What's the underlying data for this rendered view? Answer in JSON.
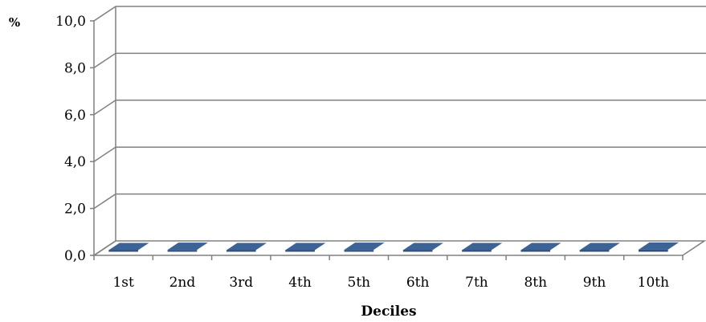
{
  "chart_data": {
    "type": "bar",
    "title": "",
    "xlabel": "Deciles",
    "ylabel": "%",
    "categories": [
      "1st",
      "2nd",
      "3rd",
      "4th",
      "5th",
      "6th",
      "7th",
      "8th",
      "9th",
      "10th"
    ],
    "values": [
      0.05,
      0.08,
      0.06,
      0.05,
      0.08,
      0.07,
      0.07,
      0.07,
      0.07,
      0.09
    ],
    "ylim": [
      0,
      10
    ],
    "yticks": [
      "0,0",
      "2,0",
      "4,0",
      "6,0",
      "8,0",
      "10,0"
    ],
    "grid": true,
    "legend": "none",
    "bar_color": "#3d6396",
    "grid_color": "#808080"
  }
}
